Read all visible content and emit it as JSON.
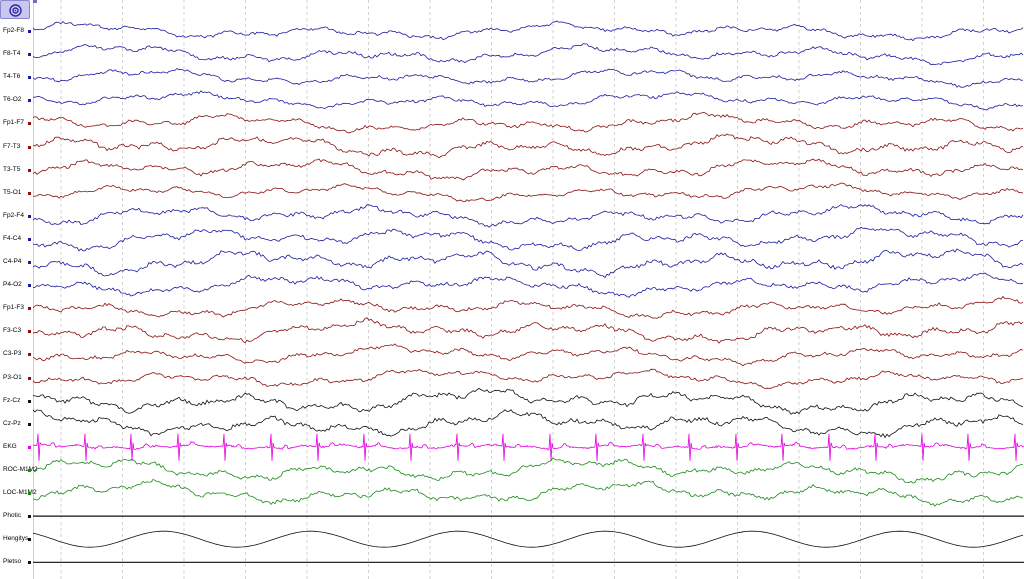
{
  "toolbar": {
    "settings_icon": "target-icon"
  },
  "channels": [
    {
      "label": "Fp2-F8",
      "color": "#1a1aa0",
      "amp": 4,
      "seed": 1
    },
    {
      "label": "F8-T4",
      "color": "#1a1aa0",
      "amp": 4.5,
      "seed": 2
    },
    {
      "label": "T4-T6",
      "color": "#1a1aa0",
      "amp": 4,
      "seed": 3
    },
    {
      "label": "T6-O2",
      "color": "#1a1aa0",
      "amp": 4,
      "seed": 4
    },
    {
      "label": "Fp1-F7",
      "color": "#8b1010",
      "amp": 4.5,
      "seed": 5
    },
    {
      "label": "F7-T3",
      "color": "#8b1010",
      "amp": 5.5,
      "seed": 6
    },
    {
      "label": "T3-T5",
      "color": "#8b1010",
      "amp": 5,
      "seed": 7
    },
    {
      "label": "T5-O1",
      "color": "#8b1010",
      "amp": 4,
      "seed": 8
    },
    {
      "label": "Fp2-F4",
      "color": "#1a1aa0",
      "amp": 5,
      "seed": 9
    },
    {
      "label": "F4-C4",
      "color": "#1a1aa0",
      "amp": 5.5,
      "seed": 10
    },
    {
      "label": "C4-P4",
      "color": "#1a1aa0",
      "amp": 6,
      "seed": 11
    },
    {
      "label": "P4-O2",
      "color": "#1a1aa0",
      "amp": 5,
      "seed": 12
    },
    {
      "label": "Fp1-F3",
      "color": "#8b1010",
      "amp": 4.5,
      "seed": 13
    },
    {
      "label": "F3-C3",
      "color": "#8b1010",
      "amp": 5.5,
      "seed": 14
    },
    {
      "label": "C3-P3",
      "color": "#8b1010",
      "amp": 4.5,
      "seed": 15
    },
    {
      "label": "P3-O1",
      "color": "#8b1010",
      "amp": 4.5,
      "seed": 16
    },
    {
      "label": "Fz-Cz",
      "color": "#111111",
      "amp": 6,
      "seed": 17
    },
    {
      "label": "Cz-Pz",
      "color": "#111111",
      "amp": 6,
      "seed": 18
    },
    {
      "label": "EKG",
      "color": "#e000e0",
      "type": "ekg",
      "seed": 19
    },
    {
      "label": "ROC-M1M2",
      "color": "#1a8a1a",
      "amp": 5.5,
      "seed": 20
    },
    {
      "label": "LOC-M1M2",
      "color": "#1a8a1a",
      "amp": 5.5,
      "seed": 21
    },
    {
      "label": "Photic",
      "color": "#111111",
      "type": "flat",
      "seed": 22
    },
    {
      "label": "Hengitys",
      "color": "#111111",
      "type": "resp",
      "seed": 23
    },
    {
      "label": "Pletso",
      "color": "#111111",
      "type": "flat",
      "seed": 24
    }
  ],
  "colors": {
    "grid": "#c8c8c8",
    "settings_bg": "#c9c7ee"
  }
}
